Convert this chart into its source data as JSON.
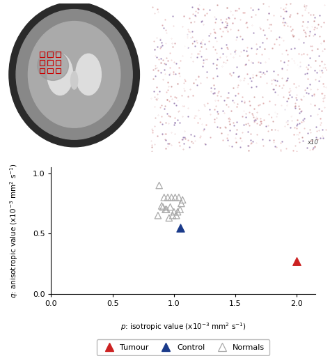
{
  "normals_p": [
    0.88,
    0.92,
    0.95,
    0.98,
    1.01,
    1.04,
    1.07,
    0.9,
    0.94,
    0.97,
    1.0,
    1.03,
    0.87,
    0.93,
    0.96,
    1.02,
    1.06,
    0.91,
    0.99,
    1.05
  ],
  "normals_q": [
    0.9,
    0.8,
    0.8,
    0.8,
    0.8,
    0.8,
    0.78,
    0.73,
    0.7,
    0.72,
    0.68,
    0.68,
    0.65,
    0.7,
    0.63,
    0.65,
    0.75,
    0.72,
    0.65,
    0.7
  ],
  "control_p": [
    1.05
  ],
  "control_q": [
    0.55
  ],
  "tumour_p": [
    2.0
  ],
  "tumour_q": [
    0.27
  ],
  "normals_color": "#aaaaaa",
  "control_color": "#1a3a8a",
  "tumour_color": "#cc2222",
  "xlabel": "p: isotropic value (x10⁻³ mm² s⁻¹)",
  "ylabel": "q: anisotropic value (x10⁻³ mm² s⁻¹)",
  "xlim": [
    0,
    2.15
  ],
  "ylim": [
    0,
    1.05
  ],
  "xticks": [
    0,
    0.5,
    1.0,
    1.5,
    2.0
  ],
  "yticks": [
    0,
    0.5,
    1.0
  ],
  "bg_color": "#ffffff",
  "mri_bg": "#1a1a1a",
  "hist_bg": "#f0d8d8",
  "x10_text": "x10"
}
